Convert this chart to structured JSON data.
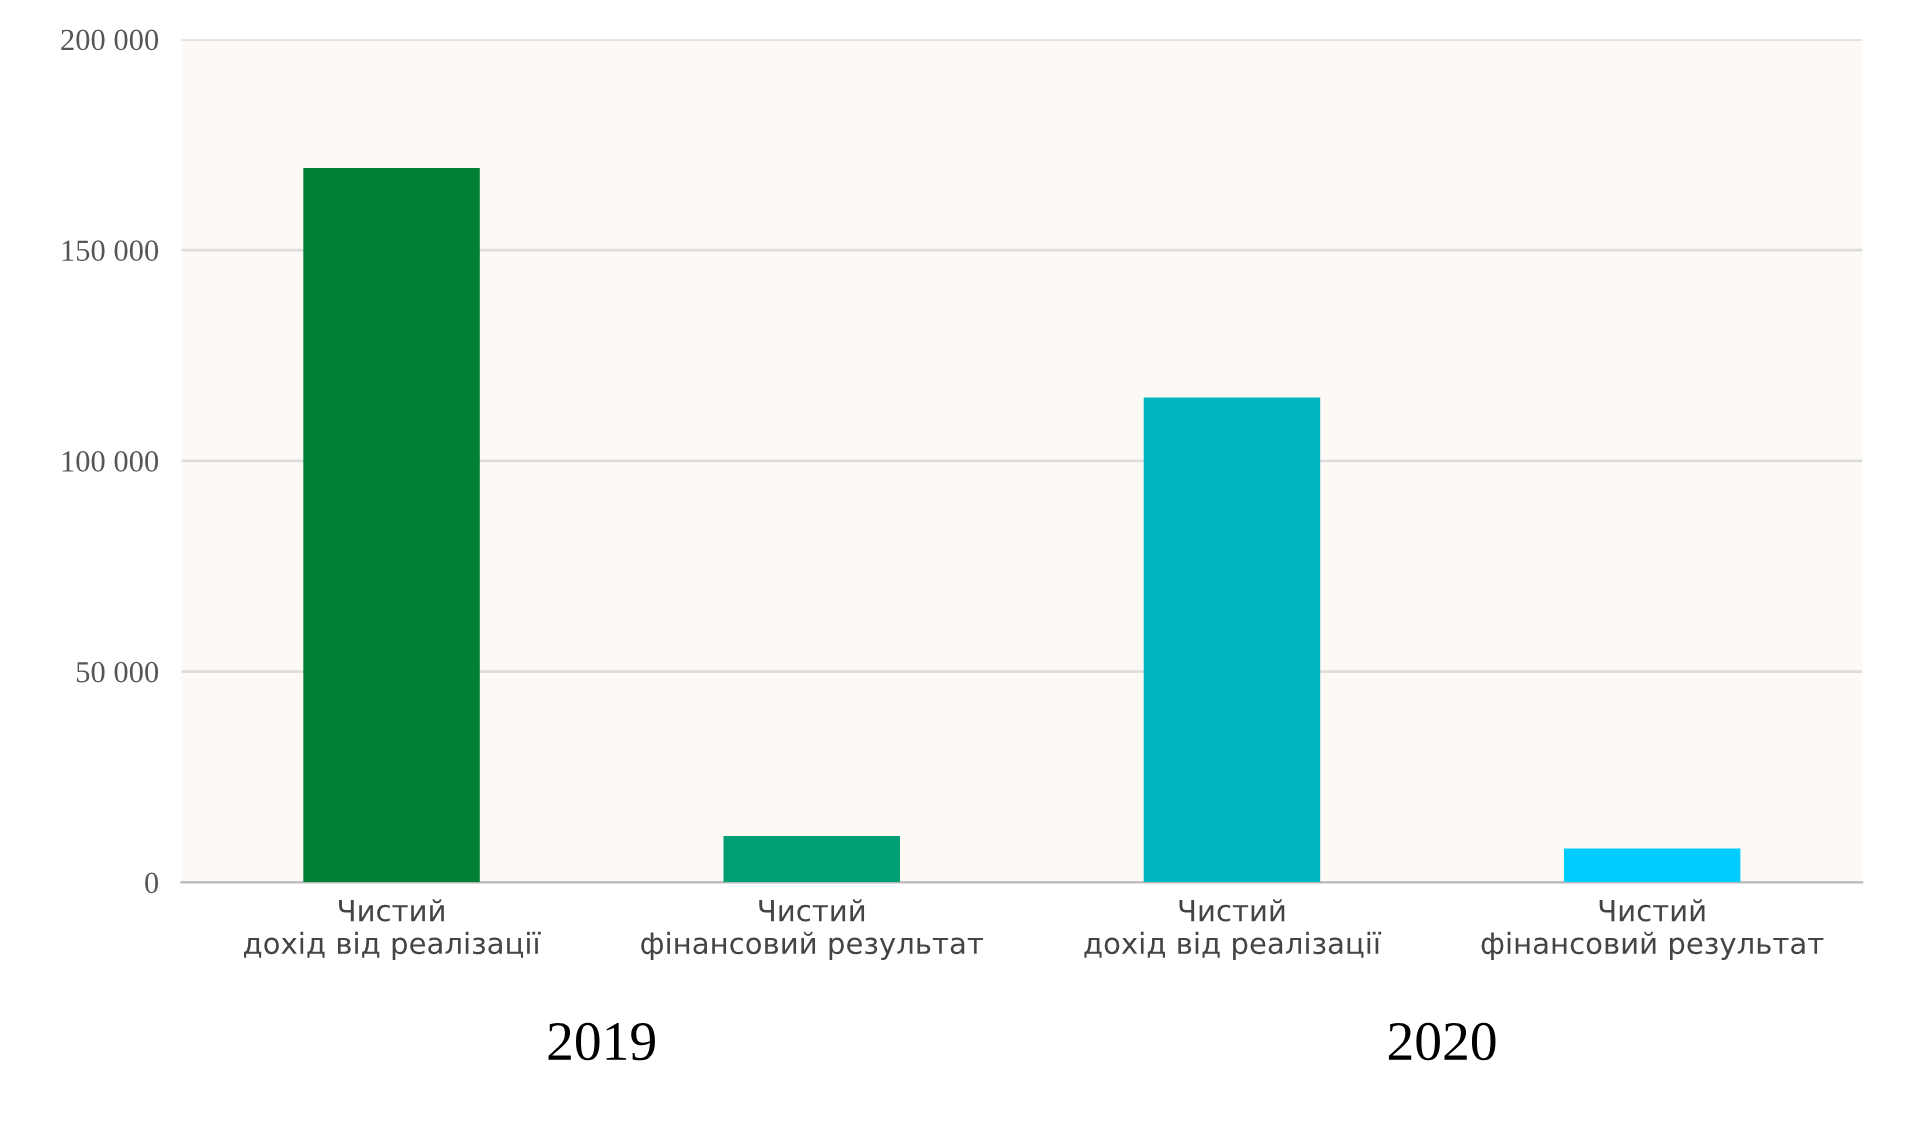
{
  "chart_data": {
    "type": "bar",
    "categories": [
      "Чистий\nдохід від реалізації",
      "Чистий\nфінансовий результат",
      "Чистий\nдохід від реалізації",
      "Чистий\nфінансовий результат"
    ],
    "values": [
      169500,
      11000,
      115000,
      8000
    ],
    "colors": [
      "#007f36",
      "#009e73",
      "#00b5c2",
      "#00ccff"
    ],
    "ylim": [
      0,
      200000
    ],
    "yticks": [
      {
        "value": 0,
        "label": "0"
      },
      {
        "value": 50000,
        "label": "50 000"
      },
      {
        "value": 100000,
        "label": "100 000"
      },
      {
        "value": 150000,
        "label": "150 000"
      },
      {
        "value": 200000,
        "label": "200 000"
      }
    ],
    "grid": "y",
    "annotations": [
      "2019",
      "2020"
    ]
  }
}
